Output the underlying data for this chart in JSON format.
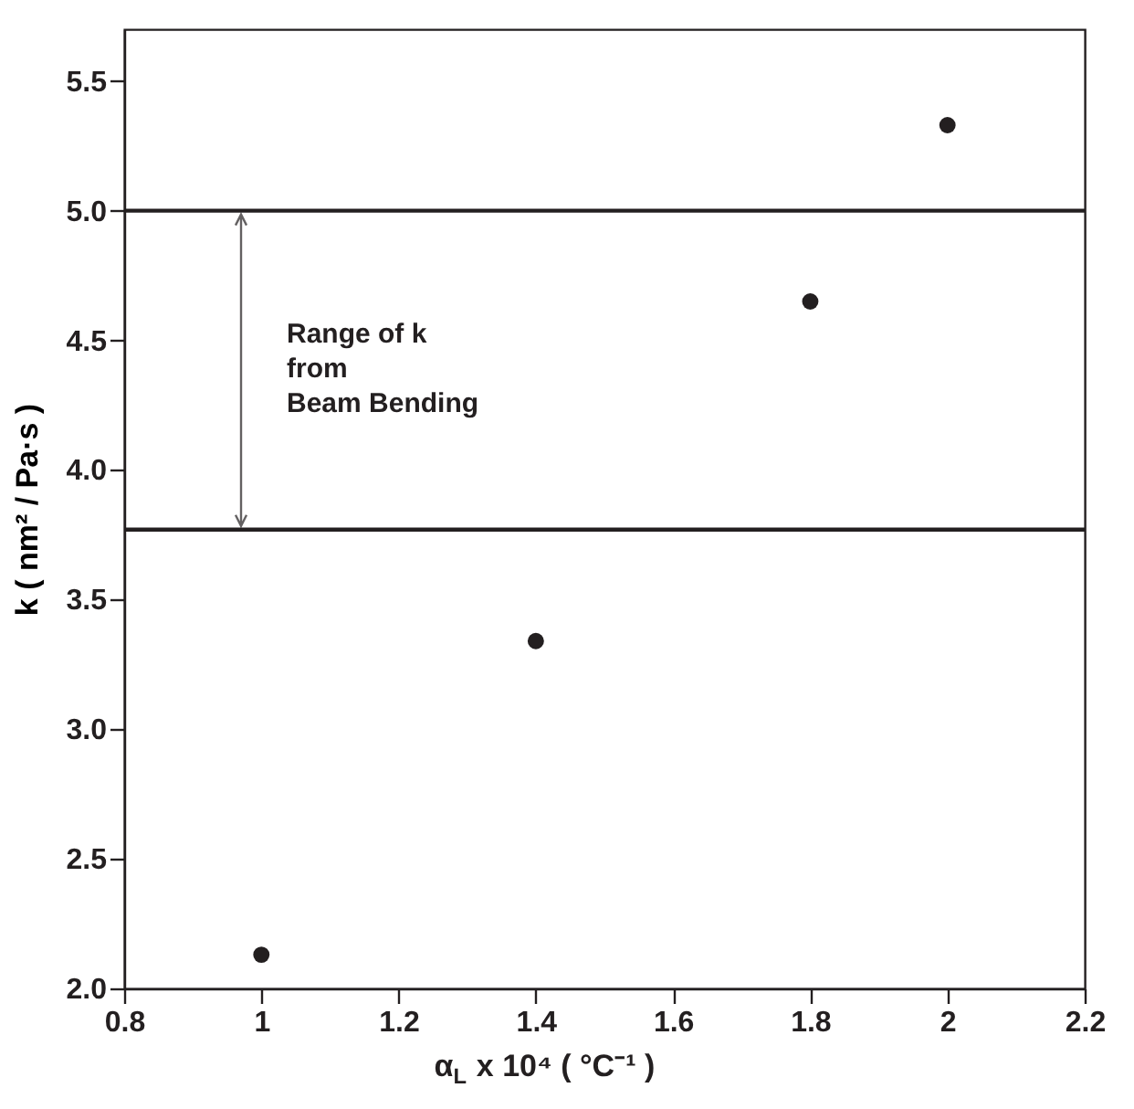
{
  "chart_data": {
    "type": "scatter",
    "xlabel": "α$_{L}$ x 10⁴  ( °C⁻¹ )",
    "ylabel": "k  ( nm² / Pa·s )",
    "x": [
      1.0,
      1.4,
      1.8,
      2.0
    ],
    "series": [
      {
        "color": "#231f20",
        "values": [
          2.13,
          3.34,
          4.65,
          5.33
        ]
      }
    ],
    "marker": "circle",
    "xlim": [
      0.8,
      2.2
    ],
    "xticks": [
      0.8,
      {
        "value": 1,
        "label": "1"
      },
      1.2,
      1.4,
      1.6,
      1.8,
      {
        "value": 2,
        "label": "2"
      },
      2.2
    ],
    "ylim": [
      2.0,
      5.7
    ],
    "yticks": [
      {
        "value": 2,
        "label": "2.0"
      },
      2.5,
      {
        "value": 3,
        "label": "3.0"
      },
      3.5,
      {
        "value": 4,
        "label": "4.0"
      },
      4.5,
      {
        "value": 5,
        "label": "5.0"
      },
      5.5
    ],
    "ref_lines": [
      {
        "axis": "y",
        "value": 5.0,
        "color": "#231f20"
      },
      {
        "axis": "y",
        "value": 3.77,
        "color": "#231f20"
      }
    ],
    "annotations": [
      "Range of k\nfrom\nBeam Bending"
    ],
    "grid": false
  }
}
